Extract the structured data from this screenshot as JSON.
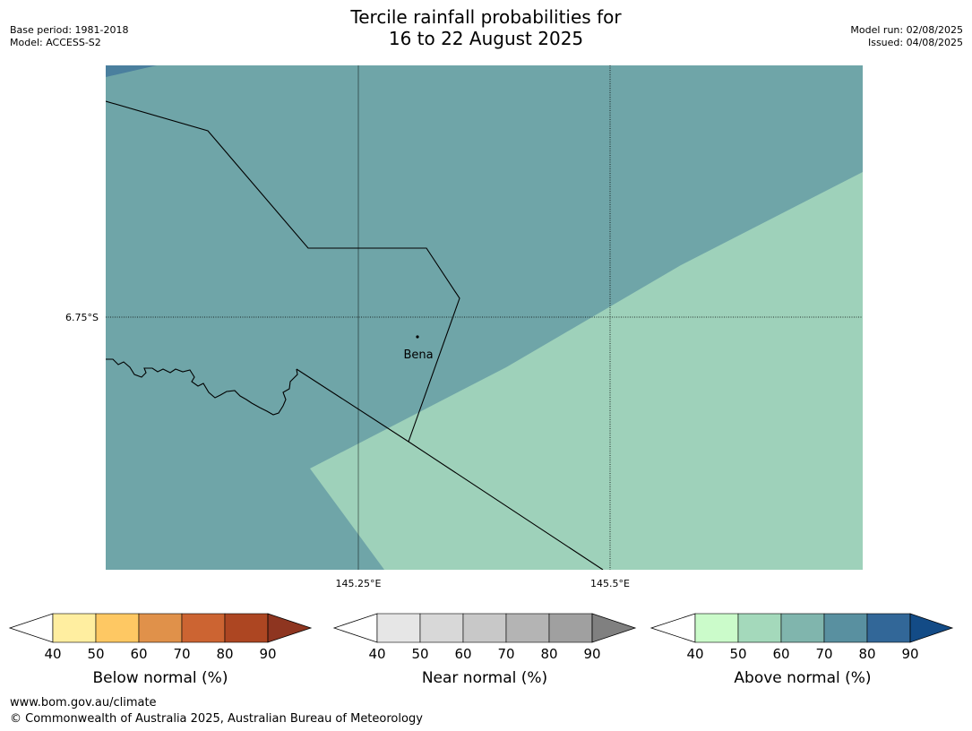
{
  "header": {
    "title_line1": "Tercile rainfall probabilities for",
    "title_line2": "16 to 22 August 2025",
    "base_period": "Base period: 1981-2018",
    "model": "Model: ACCESS-S2",
    "model_run": "Model run: 02/08/2025",
    "issued": "Issued: 04/08/2025"
  },
  "map": {
    "place_label": "Bena",
    "lat_label": "6.75°S",
    "lon_labels": [
      "145.25°E",
      "145.5°E"
    ],
    "colors": {
      "above_60_70": "#6fa5a8",
      "above_50_60": "#9ed1ba",
      "above_70_80": "#4a7f9e"
    }
  },
  "colorbars": [
    {
      "label": "Below normal (%)",
      "ticks": [
        "40",
        "50",
        "60",
        "70",
        "80",
        "90"
      ],
      "colors": [
        "#ffeea0",
        "#fec863",
        "#e0914a",
        "#cc6432",
        "#ad4622",
        "#8e3520"
      ]
    },
    {
      "label": "Near normal (%)",
      "ticks": [
        "40",
        "50",
        "60",
        "70",
        "80",
        "90"
      ],
      "colors": [
        "#e6e6e6",
        "#d8d8d8",
        "#c8c8c8",
        "#b4b4b4",
        "#a0a0a0",
        "#808080"
      ]
    },
    {
      "label": "Above normal (%)",
      "ticks": [
        "40",
        "50",
        "60",
        "70",
        "80",
        "90"
      ],
      "colors": [
        "#cbfbca",
        "#a4d9bb",
        "#80b5ad",
        "#5990a0",
        "#326798",
        "#134b86"
      ]
    }
  ],
  "footer": {
    "url": "www.bom.gov.au/climate",
    "copyright": "© Commonwealth of Australia 2025, Australian Bureau of Meteorology"
  }
}
